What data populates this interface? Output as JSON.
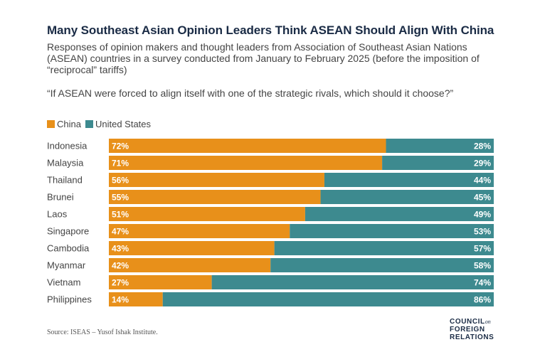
{
  "title": "Many Southeast Asian Opinion Leaders Think ASEAN Should Align With China",
  "subtitle": "Responses of opinion makers and thought leaders from Association of Southeast Asian Nations (ASEAN) countries in a survey conducted from January to February 2025 (before the imposition of “reciprocal” tariffs)",
  "question": "“If ASEAN were forced to align itself with one of the strategic rivals, which should it choose?”",
  "source": "Source: ISEAS – Yusof Ishak Institute.",
  "logo": {
    "line1": "COUNCIL",
    "line1_suffix": "on",
    "line2": "FOREIGN",
    "line3": "RELATIONS"
  },
  "colors": {
    "china": "#E8901A",
    "us": "#3D8A8F"
  },
  "chart_data": {
    "type": "bar",
    "orientation": "horizontal",
    "stacked": true,
    "categories": [
      "Indonesia",
      "Malaysia",
      "Thailand",
      "Brunei",
      "Laos",
      "Singapore",
      "Cambodia",
      "Myanmar",
      "Vietnam",
      "Philippines"
    ],
    "series": [
      {
        "name": "China",
        "values": [
          72,
          71,
          56,
          55,
          51,
          47,
          43,
          42,
          27,
          14
        ],
        "labels": [
          "72%",
          "71%",
          "56%",
          "55%",
          "51%",
          "47%",
          "43%",
          "42%",
          "27%",
          "14%"
        ]
      },
      {
        "name": "United States",
        "values": [
          28,
          29,
          44,
          45,
          49,
          53,
          57,
          58,
          74,
          86
        ],
        "labels": [
          "28%",
          "29%",
          "44%",
          "45%",
          "49%",
          "53%",
          "57%",
          "58%",
          "74%",
          "86%"
        ]
      }
    ],
    "legend_position": "top-left",
    "grid": false
  }
}
